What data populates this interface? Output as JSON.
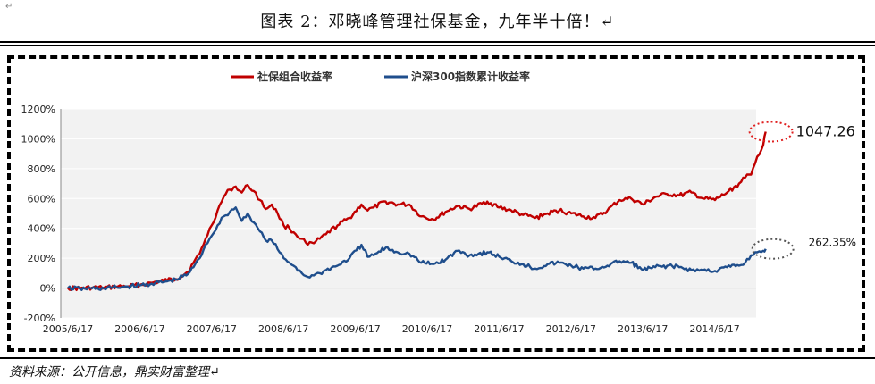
{
  "page": {
    "corner_mark": "↵",
    "title": "图表 2：邓晓峰管理社保基金，九年半十倍！↵",
    "source": "资料来源：公开信息，鼎实财富整理↵"
  },
  "colors": {
    "red_series": "#c00000",
    "blue_series": "#1f4e8c",
    "plot_bg": "#f2f2f2",
    "grid": "#ffffff",
    "red_circle": "#e02020",
    "gray_circle": "#555555"
  },
  "chart_data": {
    "type": "line",
    "title": "",
    "xlabel": "",
    "ylabel": "",
    "ylim": [
      -200,
      1200
    ],
    "y_ticks": [
      1200,
      1000,
      800,
      600,
      400,
      200,
      0,
      -200
    ],
    "y_tick_labels": [
      "1200%",
      "1000%",
      "800%",
      "600%",
      "400%",
      "200%",
      "0%",
      "-200%"
    ],
    "x_tick_labels": [
      "2005/6/17",
      "2006/6/17",
      "2007/6/17",
      "2008/6/17",
      "2009/6/17",
      "2010/6/17",
      "2011/6/17",
      "2012/6/17",
      "2013/6/17",
      "2014/6/17"
    ],
    "legend_position": "top",
    "grid": true,
    "series": [
      {
        "name": "社保组合收益率",
        "color": "#c00000",
        "points": [
          [
            "2005/6/17",
            0
          ],
          [
            "2005/8/17",
            -2
          ],
          [
            "2005/10/17",
            3
          ],
          [
            "2005/12/17",
            2
          ],
          [
            "2006/2/17",
            8
          ],
          [
            "2006/4/17",
            12
          ],
          [
            "2006/6/17",
            20
          ],
          [
            "2006/8/17",
            35
          ],
          [
            "2006/10/17",
            50
          ],
          [
            "2006/12/17",
            60
          ],
          [
            "2007/2/17",
            110
          ],
          [
            "2007/3/17",
            170
          ],
          [
            "2007/4/17",
            230
          ],
          [
            "2007/5/17",
            330
          ],
          [
            "2007/6/17",
            420
          ],
          [
            "2007/7/17",
            520
          ],
          [
            "2007/8/17",
            610
          ],
          [
            "2007/9/17",
            660
          ],
          [
            "2007/10/17",
            680
          ],
          [
            "2007/11/17",
            640
          ],
          [
            "2007/12/17",
            690
          ],
          [
            "2008/1/17",
            650
          ],
          [
            "2008/2/17",
            590
          ],
          [
            "2008/3/17",
            530
          ],
          [
            "2008/4/17",
            560
          ],
          [
            "2008/5/17",
            500
          ],
          [
            "2008/6/17",
            420
          ],
          [
            "2008/7/17",
            400
          ],
          [
            "2008/8/17",
            360
          ],
          [
            "2008/9/17",
            330
          ],
          [
            "2008/10/17",
            290
          ],
          [
            "2008/11/17",
            300
          ],
          [
            "2008/12/17",
            330
          ],
          [
            "2009/1/17",
            360
          ],
          [
            "2009/3/17",
            420
          ],
          [
            "2009/5/17",
            470
          ],
          [
            "2009/7/17",
            560
          ],
          [
            "2009/8/17",
            520
          ],
          [
            "2009/9/17",
            540
          ],
          [
            "2009/11/17",
            580
          ],
          [
            "2010/1/17",
            560
          ],
          [
            "2010/3/17",
            560
          ],
          [
            "2010/5/17",
            480
          ],
          [
            "2010/7/17",
            460
          ],
          [
            "2010/9/17",
            510
          ],
          [
            "2010/11/17",
            550
          ],
          [
            "2011/1/17",
            530
          ],
          [
            "2011/4/17",
            580
          ],
          [
            "2011/6/17",
            540
          ],
          [
            "2011/8/17",
            520
          ],
          [
            "2011/10/17",
            490
          ],
          [
            "2011/12/17",
            470
          ],
          [
            "2012/2/17",
            500
          ],
          [
            "2012/4/17",
            520
          ],
          [
            "2012/6/17",
            500
          ],
          [
            "2012/8/17",
            480
          ],
          [
            "2012/10/17",
            470
          ],
          [
            "2012/12/17",
            520
          ],
          [
            "2013/2/17",
            590
          ],
          [
            "2013/4/17",
            600
          ],
          [
            "2013/6/17",
            560
          ],
          [
            "2013/8/17",
            610
          ],
          [
            "2013/10/17",
            630
          ],
          [
            "2013/12/17",
            620
          ],
          [
            "2014/2/17",
            640
          ],
          [
            "2014/4/17",
            600
          ],
          [
            "2014/6/17",
            590
          ],
          [
            "2014/8/17",
            640
          ],
          [
            "2014/10/17",
            700
          ],
          [
            "2014/11/17",
            740
          ],
          [
            "2014/12/17",
            760
          ],
          [
            "2015/1/17",
            880
          ],
          [
            "2015/2/17",
            960
          ],
          [
            "2015/3/1",
            1047.26
          ]
        ]
      },
      {
        "name": "沪深300指数累计收益率",
        "color": "#1f4e8c",
        "points": [
          [
            "2005/6/17",
            0
          ],
          [
            "2005/8/17",
            -5
          ],
          [
            "2005/10/17",
            -2
          ],
          [
            "2005/12/17",
            -3
          ],
          [
            "2006/2/17",
            5
          ],
          [
            "2006/4/17",
            10
          ],
          [
            "2006/6/17",
            18
          ],
          [
            "2006/8/17",
            30
          ],
          [
            "2006/10/17",
            40
          ],
          [
            "2006/12/17",
            55
          ],
          [
            "2007/2/17",
            95
          ],
          [
            "2007/3/17",
            140
          ],
          [
            "2007/4/17",
            200
          ],
          [
            "2007/5/17",
            290
          ],
          [
            "2007/6/17",
            350
          ],
          [
            "2007/7/17",
            420
          ],
          [
            "2007/8/17",
            480
          ],
          [
            "2007/9/17",
            510
          ],
          [
            "2007/10/17",
            540
          ],
          [
            "2007/11/17",
            450
          ],
          [
            "2007/12/17",
            500
          ],
          [
            "2008/1/17",
            440
          ],
          [
            "2008/2/17",
            380
          ],
          [
            "2008/3/17",
            320
          ],
          [
            "2008/4/17",
            320
          ],
          [
            "2008/5/17",
            260
          ],
          [
            "2008/6/17",
            200
          ],
          [
            "2008/7/17",
            170
          ],
          [
            "2008/8/17",
            140
          ],
          [
            "2008/9/17",
            100
          ],
          [
            "2008/10/17",
            75
          ],
          [
            "2008/11/17",
            85
          ],
          [
            "2008/12/17",
            100
          ],
          [
            "2009/1/17",
            120
          ],
          [
            "2009/3/17",
            150
          ],
          [
            "2009/5/17",
            200
          ],
          [
            "2009/7/17",
            290
          ],
          [
            "2009/8/17",
            210
          ],
          [
            "2009/9/17",
            220
          ],
          [
            "2009/11/17",
            270
          ],
          [
            "2010/1/17",
            240
          ],
          [
            "2010/3/17",
            230
          ],
          [
            "2010/5/17",
            170
          ],
          [
            "2010/7/17",
            160
          ],
          [
            "2010/9/17",
            190
          ],
          [
            "2010/11/17",
            250
          ],
          [
            "2011/1/17",
            220
          ],
          [
            "2011/4/17",
            240
          ],
          [
            "2011/6/17",
            210
          ],
          [
            "2011/8/17",
            180
          ],
          [
            "2011/10/17",
            160
          ],
          [
            "2011/12/17",
            130
          ],
          [
            "2012/2/17",
            160
          ],
          [
            "2012/4/17",
            170
          ],
          [
            "2012/6/17",
            150
          ],
          [
            "2012/8/17",
            130
          ],
          [
            "2012/10/17",
            130
          ],
          [
            "2012/12/17",
            150
          ],
          [
            "2013/2/17",
            180
          ],
          [
            "2013/4/17",
            170
          ],
          [
            "2013/6/17",
            120
          ],
          [
            "2013/8/17",
            140
          ],
          [
            "2013/10/17",
            150
          ],
          [
            "2013/12/17",
            140
          ],
          [
            "2014/2/17",
            120
          ],
          [
            "2014/4/17",
            120
          ],
          [
            "2014/6/17",
            115
          ],
          [
            "2014/8/17",
            140
          ],
          [
            "2014/10/17",
            150
          ],
          [
            "2014/11/17",
            170
          ],
          [
            "2014/12/17",
            220
          ],
          [
            "2015/1/17",
            240
          ],
          [
            "2015/2/17",
            250
          ],
          [
            "2015/3/1",
            262.35
          ]
        ]
      }
    ],
    "annotations": [
      {
        "text": "1047.26",
        "series": "社保组合收益率"
      },
      {
        "text": "262.35%",
        "series": "沪深300指数累计收益率"
      }
    ]
  }
}
